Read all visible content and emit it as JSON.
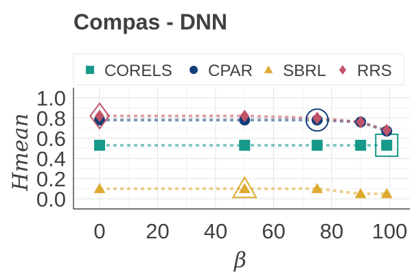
{
  "chart_data": {
    "type": "line",
    "title": "Compas - DNN",
    "xlabel": "β",
    "ylabel": "Hmean",
    "xlim": [
      -9,
      107
    ],
    "ylim": [
      -0.1,
      1.1
    ],
    "xticks": [
      0,
      20,
      40,
      60,
      80,
      100
    ],
    "yticks": [
      0.0,
      0.2,
      0.4,
      0.6,
      0.8,
      1.0
    ],
    "xtick_labels": [
      "0",
      "20",
      "40",
      "60",
      "80",
      "100"
    ],
    "ytick_labels": [
      "0.0",
      "0.2",
      "0.4",
      "0.6",
      "0.8",
      "1.0"
    ],
    "grid": true,
    "legend_position": "top",
    "x": [
      0,
      50,
      75,
      90,
      99
    ],
    "series": [
      {
        "name": "CORELS",
        "marker": "square",
        "color": "#16998a",
        "values": [
          0.53,
          0.53,
          0.53,
          0.53,
          0.53
        ],
        "highlight_index": 4
      },
      {
        "name": "CPAR",
        "marker": "circle",
        "color": "#123f7a",
        "values": [
          0.78,
          0.78,
          0.78,
          0.76,
          0.67
        ],
        "highlight_index": 2
      },
      {
        "name": "SBRL",
        "marker": "triangle",
        "color": "#dcaa2f",
        "values": [
          0.1,
          0.1,
          0.1,
          0.05,
          0.05
        ],
        "highlight_index": 1
      },
      {
        "name": "RRS",
        "marker": "diamond",
        "color": "#c05468",
        "values": [
          0.82,
          0.82,
          0.8,
          0.76,
          0.68
        ],
        "highlight_index": 0
      }
    ]
  }
}
